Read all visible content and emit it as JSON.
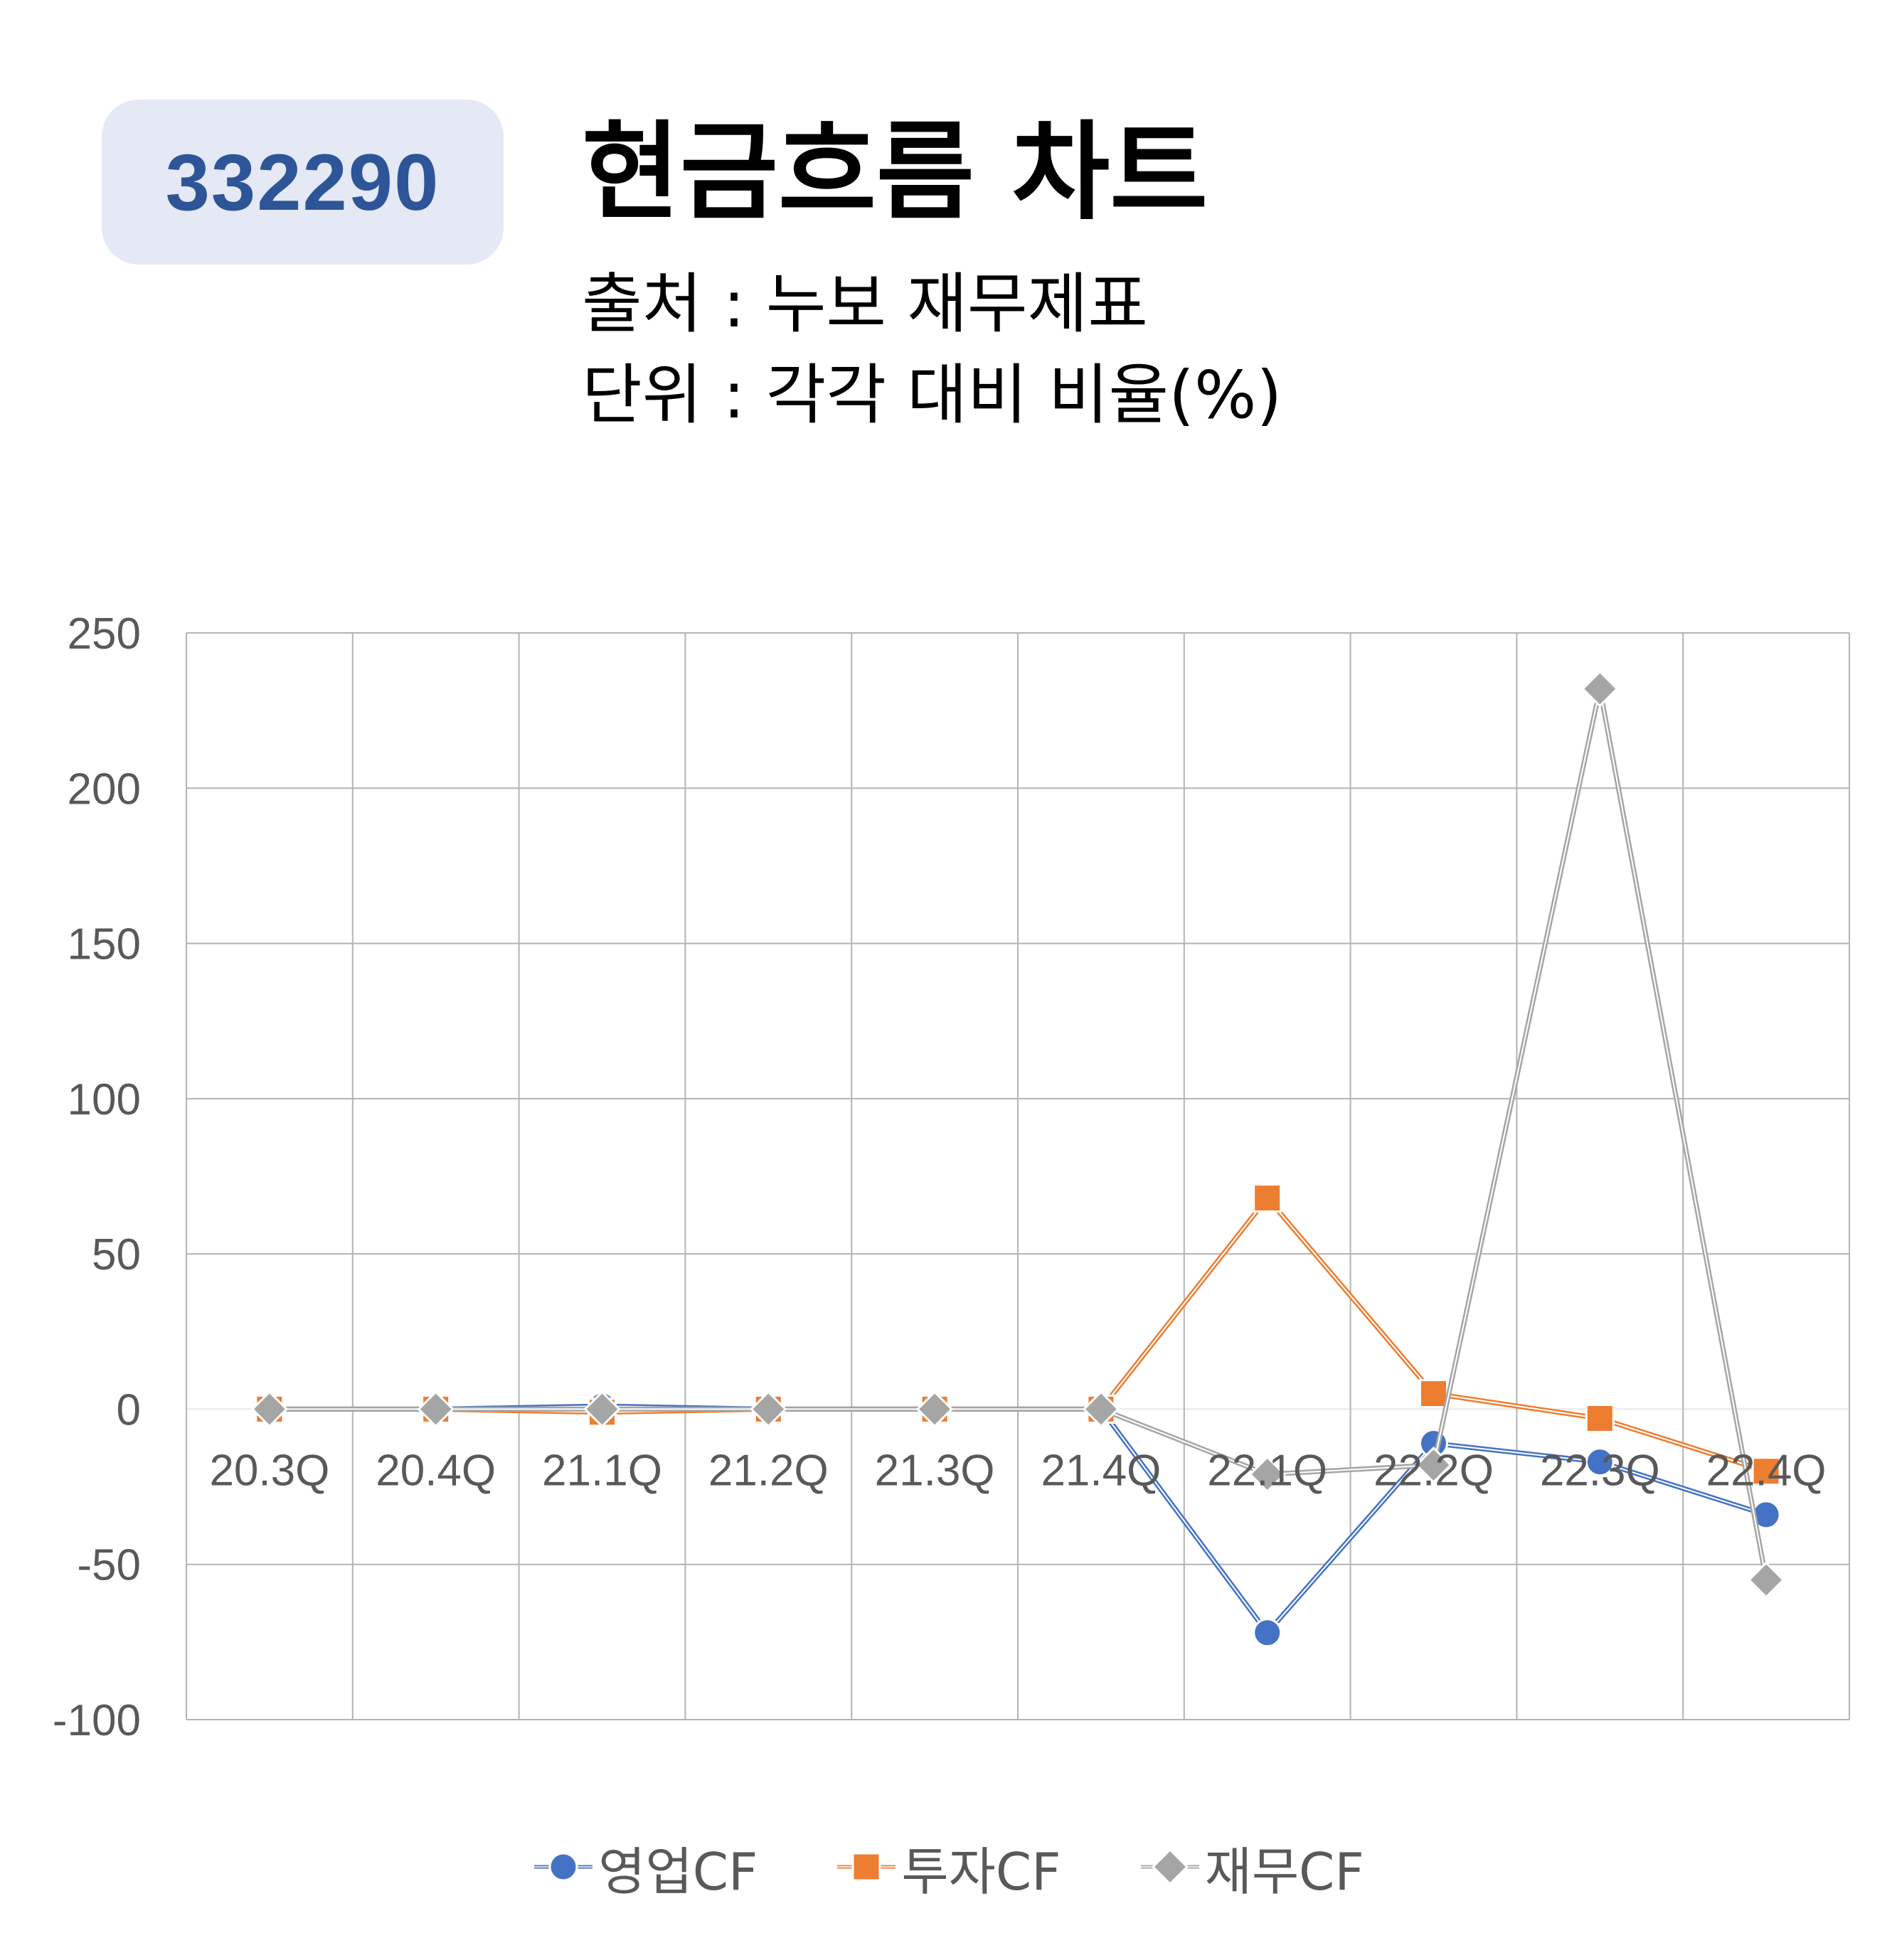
{
  "header": {
    "code": "332290",
    "title": "현금흐름 차트",
    "source": "출처 : 누보 재무제표",
    "unit": "단위 : 각각 대비 비율(%)"
  },
  "chart_data": {
    "type": "line",
    "title": "",
    "xlabel": "",
    "ylabel": "",
    "categories": [
      "20.3Q",
      "20.4Q",
      "21.1Q",
      "21.2Q",
      "21.3Q",
      "21.4Q",
      "22.1Q",
      "22.2Q",
      "22.3Q",
      "22.4Q"
    ],
    "ylim": [
      -100,
      250
    ],
    "yticks": [
      250,
      200,
      150,
      100,
      50,
      0,
      -50,
      -100
    ],
    "grid": true,
    "legend_position": "bottom",
    "series": [
      {
        "name": "영업CF",
        "color": "#4472c4",
        "marker": "circle",
        "values": [
          0,
          0,
          1,
          0,
          0,
          0,
          -72,
          -11,
          -17,
          -34
        ]
      },
      {
        "name": "투자CF",
        "color": "#ed7d31",
        "marker": "square",
        "values": [
          0,
          0,
          -1,
          0,
          0,
          0,
          68,
          5,
          -3,
          -20
        ]
      },
      {
        "name": "재무CF",
        "color": "#a5a5a5",
        "marker": "diamond",
        "values": [
          0,
          0,
          0,
          0,
          0,
          0,
          -21,
          -18,
          232,
          -55
        ]
      }
    ]
  }
}
